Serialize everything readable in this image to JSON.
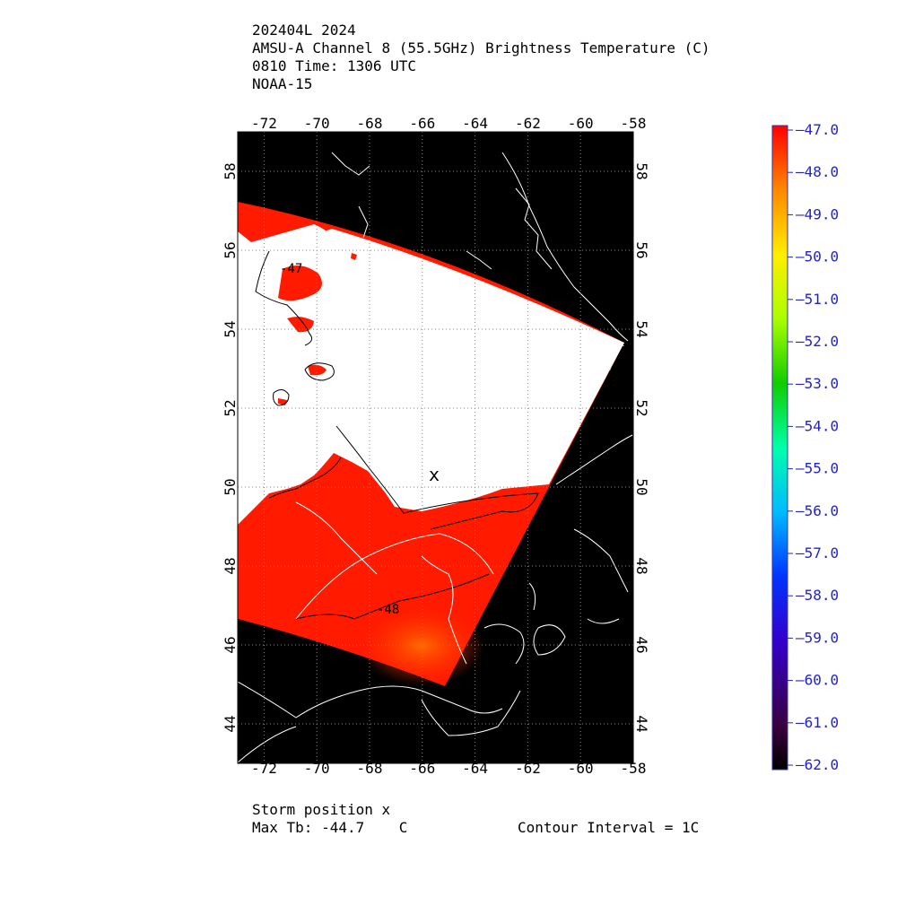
{
  "header": {
    "line1": "202404L 2024",
    "line2": "AMSU-A Channel 8 (55.5GHz) Brightness Temperature (C)",
    "line3": "0810 Time: 1306 UTC",
    "line4": "NOAA-15"
  },
  "map": {
    "lon_range": [
      -73,
      -58
    ],
    "lat_range": [
      43,
      59
    ],
    "lon_ticks": [
      "-72",
      "-70",
      "-68",
      "-66",
      "-64",
      "-62",
      "-60",
      "-58"
    ],
    "lat_ticks": [
      "44",
      "46",
      "48",
      "50",
      "52",
      "54",
      "56",
      "58"
    ],
    "contour_labels": [
      {
        "text": "-47"
      },
      {
        "text": "-48"
      }
    ],
    "storm_marker": "x",
    "colors": {
      "background": "#000000",
      "warm_fill": "#ff1a00",
      "cold_fill": "#ffffff",
      "coastline": "#ffffff",
      "contour": "#000000"
    }
  },
  "colorbar": {
    "labels": [
      "-47.0",
      "-48.0",
      "-49.0",
      "-50.0",
      "-51.0",
      "-52.0",
      "-53.0",
      "-54.0",
      "-55.0",
      "-56.0",
      "-57.0",
      "-58.0",
      "-59.0",
      "-60.0",
      "-61.0",
      "-62.0"
    ],
    "label_color": "#2222cc"
  },
  "footer": {
    "storm_position": "Storm position x",
    "max_tb": "Max Tb: -44.7    C",
    "contour_interval": "Contour Interval = 1C"
  }
}
